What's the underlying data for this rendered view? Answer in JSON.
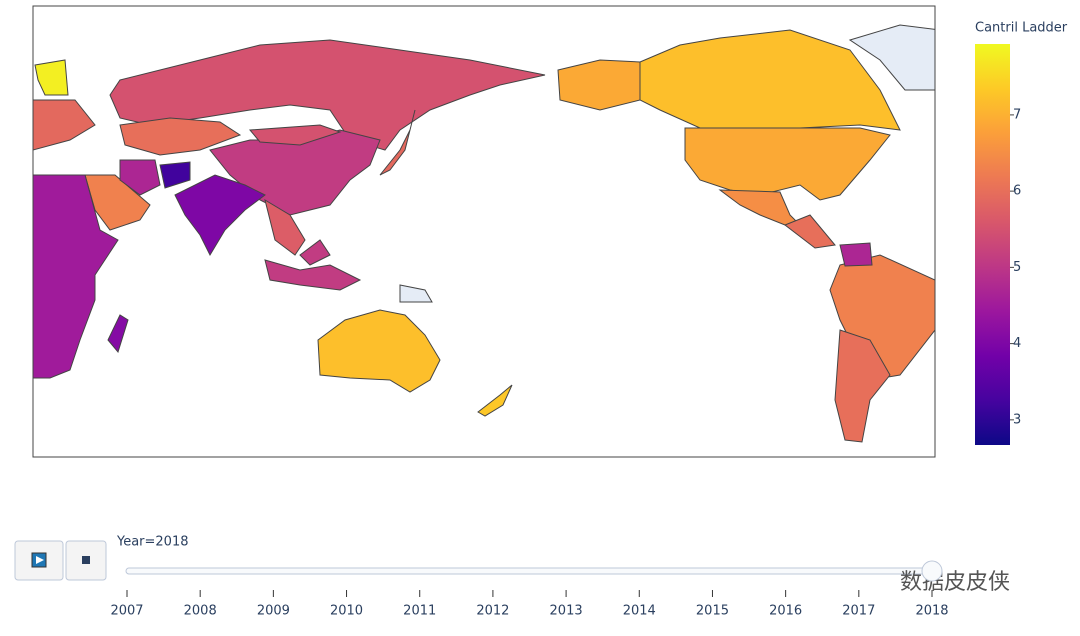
{
  "chart_data": {
    "type": "choropleth",
    "values": [
      5.5,
      7.2,
      6.9,
      6.9,
      6.5,
      6.0,
      6.3,
      6.0,
      4.7,
      7.2,
      7.3,
      5.1,
      4.0,
      6.0,
      6.3,
      4.7,
      3.2,
      4.5,
      5.1,
      5.7,
      5.9,
      7.8,
      5.9,
      4.1,
      null,
      null,
      5.5
    ],
    "missing_color": "#e5ecf6",
    "colorbar_title": "Cantril Ladder",
    "zlim": [
      2.67,
      7.93
    ],
    "zticks": [
      3,
      4,
      5,
      6,
      7
    ],
    "colorscale": [
      "#0d0887",
      "#46039f",
      "#7201a8",
      "#9c179e",
      "#bd3786",
      "#d8576b",
      "#ed7953",
      "#fb9f3a",
      "#fdca26",
      "#f0f921"
    ],
    "slider": {
      "label": "Year=2018",
      "steps": [
        2007,
        2008,
        2009,
        2010,
        2011,
        2012,
        2013,
        2014,
        2015,
        2016,
        2017,
        2018
      ],
      "active": 11
    },
    "watermark": "数据皮皮侠"
  }
}
